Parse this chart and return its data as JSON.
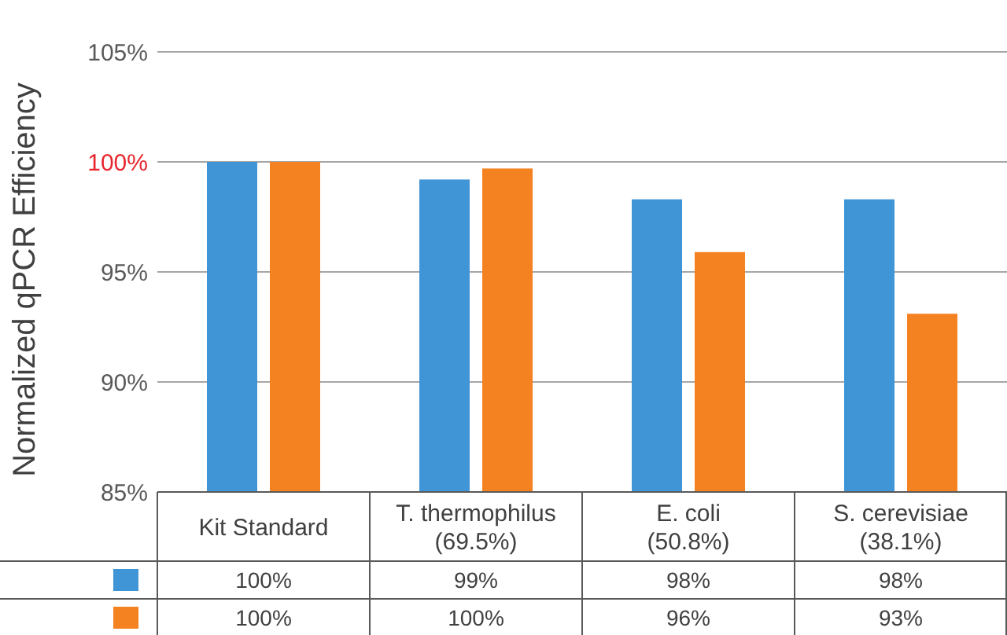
{
  "chart_data": {
    "type": "bar",
    "ylabel": "Normalized qPCR Efficiency",
    "categories": [
      "Kit Standard",
      "T. thermophilus (69.5%)",
      "E. coli (50.8%)",
      "S. cerevisiae (38.1%)"
    ],
    "series": [
      {
        "color": "#4095d6",
        "values": [
          100,
          99.2,
          98.3,
          98.3
        ],
        "value_labels": [
          "100%",
          "99%",
          "98%",
          "98%"
        ]
      },
      {
        "color": "#f58220",
        "values": [
          100,
          99.7,
          95.9,
          93.1
        ],
        "value_labels": [
          "100%",
          "100%",
          "96%",
          "93%"
        ]
      }
    ],
    "ylim": [
      85,
      105
    ],
    "yticks": [
      {
        "value": 85,
        "label": "85%"
      },
      {
        "value": 90,
        "label": "90%"
      },
      {
        "value": 95,
        "label": "95%"
      },
      {
        "value": 100,
        "label": "100%"
      },
      {
        "value": 105,
        "label": "105%"
      }
    ],
    "grid": "y"
  }
}
